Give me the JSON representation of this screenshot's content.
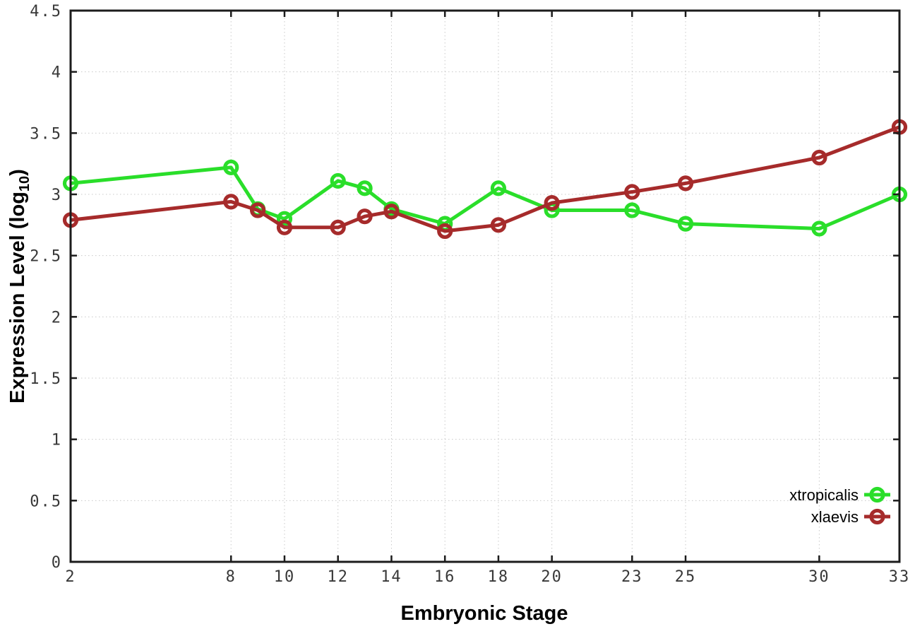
{
  "chart_data": {
    "type": "line",
    "title": "",
    "xlabel": "Embryonic Stage",
    "ylabel_parts": [
      "Expression Level (log",
      "10",
      ")"
    ],
    "x": [
      2,
      8,
      9,
      10,
      12,
      13,
      14,
      16,
      18,
      20,
      23,
      25,
      30,
      33
    ],
    "series": [
      {
        "name": "xtropicalis",
        "color": "#2ade2a",
        "values": [
          3.09,
          3.22,
          2.88,
          2.8,
          3.11,
          3.05,
          2.88,
          2.76,
          3.05,
          2.87,
          2.87,
          2.76,
          2.72,
          3.0
        ]
      },
      {
        "name": "xlaevis",
        "color": "#a62b2b",
        "values": [
          2.79,
          2.94,
          2.87,
          2.73,
          2.73,
          2.82,
          2.86,
          2.7,
          2.75,
          2.93,
          3.02,
          3.09,
          3.3,
          3.55
        ]
      }
    ],
    "xlim": [
      2,
      33
    ],
    "ylim": [
      0,
      4.5
    ],
    "xticks": [
      2,
      8,
      10,
      12,
      14,
      16,
      18,
      20,
      23,
      25,
      30,
      33
    ],
    "xtick_labels": [
      "2",
      "8",
      "10",
      "12",
      "14",
      "16",
      "18",
      "20",
      "23",
      "25",
      "30",
      "33"
    ],
    "yticks": [
      0,
      0.5,
      1,
      1.5,
      2,
      2.5,
      3,
      3.5,
      4,
      4.5
    ],
    "ytick_labels": [
      "0",
      "0.5",
      "1",
      "1.5",
      "2",
      "2.5",
      "3",
      "3.5",
      "4",
      "4.5"
    ],
    "grid": true,
    "legend_position": "bottom-right",
    "colors": {
      "border": "#1c1c1c",
      "grid": "#c9c9c9",
      "background": "#ffffff"
    }
  }
}
